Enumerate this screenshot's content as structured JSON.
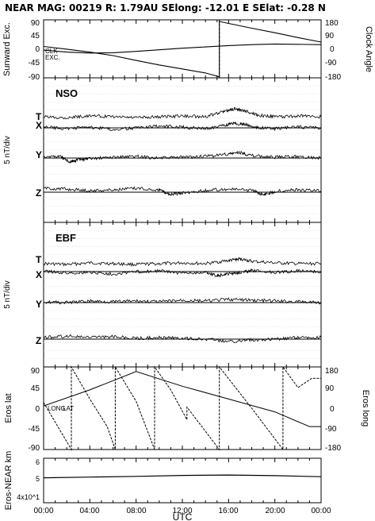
{
  "header": {
    "title": "NEAR MAG: 00219  R: 1.79AU  SElong:  -12.01 E  SElat:   -0.28 N"
  },
  "x_axis": {
    "label": "UTC",
    "ticks": [
      "00:00",
      "04:00",
      "08:00",
      "12:00",
      "16:00",
      "20:00",
      "00:00"
    ]
  },
  "chart_data": [
    {
      "id": "panel1",
      "type": "line",
      "ylabel_left": "Sunward Exc.",
      "ylabel_right": "Clock Angle",
      "ylim": [
        -90,
        90
      ],
      "ylim_right": [
        -180,
        180
      ],
      "left_ticks": [
        "90",
        "45",
        "0",
        "-45",
        "-90"
      ],
      "right_ticks": [
        "180",
        "90",
        "0",
        "-90",
        "-180"
      ],
      "series_labels": [
        "CLK",
        "EXC."
      ],
      "series": [
        {
          "name": "CLK",
          "axis": "right",
          "x": [
            0,
            2,
            4,
            6,
            8,
            10,
            12,
            14,
            15.2,
            15.2,
            16,
            18,
            20,
            22,
            24
          ],
          "y": [
            15,
            -2,
            -20,
            -42,
            -72,
            -100,
            -125,
            -150,
            -173,
            170,
            158,
            128,
            100,
            70,
            42
          ]
        },
        {
          "name": "EXC.",
          "axis": "left",
          "x": [
            0,
            2,
            4,
            6,
            8,
            10,
            12,
            14,
            16,
            18,
            20,
            22,
            24
          ],
          "y": [
            -4,
            -10,
            -13,
            -12,
            -8,
            -3,
            2,
            6,
            10,
            13,
            15,
            14,
            13
          ]
        }
      ]
    },
    {
      "id": "panel2",
      "type": "line",
      "label": "NSO",
      "ylabel": "5 nT/div",
      "series_labels": [
        "T",
        "X",
        "Y",
        "Z"
      ],
      "series": [
        {
          "name": "T",
          "baseline_div": 0,
          "x": [
            0,
            2,
            4,
            6,
            8,
            10,
            12,
            14,
            15.5,
            16.5,
            17.5,
            18.5,
            20,
            22,
            24
          ],
          "y": [
            0.3,
            0.2,
            0.4,
            0.3,
            0.2,
            0.3,
            0.4,
            0.3,
            0.9,
            1.3,
            1.0,
            0.5,
            0.3,
            0.4,
            0.3
          ]
        },
        {
          "name": "X",
          "baseline_div": 0,
          "x": [
            0,
            2,
            4,
            6,
            8,
            10,
            12,
            14,
            15.5,
            16.5,
            17.5,
            18.5,
            20,
            22,
            24
          ],
          "y": [
            0,
            -0.2,
            0,
            -0.3,
            -0.1,
            0.1,
            0,
            -0.2,
            0.2,
            0.5,
            0.3,
            -0.1,
            -0.2,
            0,
            -0.1
          ]
        },
        {
          "name": "Y",
          "baseline_div": 0,
          "x": [
            0,
            1.5,
            2.2,
            3,
            4,
            6,
            8,
            10,
            12,
            14,
            16,
            17,
            18,
            20,
            22,
            24
          ],
          "y": [
            0.1,
            0.1,
            -0.6,
            -0.3,
            -0.2,
            0,
            0.1,
            -0.1,
            0,
            0.1,
            0.4,
            0.6,
            0.2,
            0,
            0.1,
            -0.1
          ]
        },
        {
          "name": "Z",
          "baseline_div": 0,
          "x": [
            0,
            2,
            4,
            6,
            8,
            10,
            11,
            12,
            14,
            16,
            18,
            19,
            20,
            22,
            24
          ],
          "y": [
            0.4,
            0.3,
            0.1,
            0.2,
            0.4,
            0.2,
            -0.4,
            -0.2,
            0.1,
            0.3,
            0.1,
            -0.4,
            0,
            0.2,
            0.1
          ]
        }
      ]
    },
    {
      "id": "panel3",
      "type": "line",
      "label": "EBF",
      "ylabel": "5 nT/div",
      "series_labels": [
        "T",
        "X",
        "Y",
        "Z"
      ],
      "series": [
        {
          "name": "T",
          "baseline_div": 0,
          "x": [
            0,
            2,
            4,
            6,
            8,
            10,
            12,
            14,
            16,
            17,
            18,
            20,
            22,
            24
          ],
          "y": [
            0.2,
            0.1,
            0.3,
            0.2,
            0.1,
            0.2,
            0.3,
            0.2,
            0.6,
            0.8,
            0.5,
            0.3,
            0.2,
            0.2
          ]
        },
        {
          "name": "X",
          "baseline_div": 0,
          "x": [
            0,
            2,
            4,
            6,
            8,
            10,
            12,
            14,
            15,
            16,
            17,
            18,
            20,
            22,
            24
          ],
          "y": [
            0,
            -0.3,
            -0.2,
            -0.4,
            -0.1,
            0,
            -0.3,
            -0.2,
            -0.6,
            -0.4,
            -0.2,
            0,
            -0.2,
            0,
            -0.1
          ]
        },
        {
          "name": "Y",
          "baseline_div": 0,
          "x": [
            0,
            2,
            4,
            6,
            8,
            10,
            12,
            14,
            16,
            18,
            20,
            22,
            24
          ],
          "y": [
            0,
            -0.1,
            0.1,
            0,
            0.1,
            0,
            0.2,
            0.1,
            0.3,
            0.2,
            0.1,
            0,
            -0.1
          ]
        },
        {
          "name": "Z",
          "baseline_div": 0,
          "x": [
            0,
            2,
            4,
            6,
            8,
            10,
            12,
            14,
            16,
            18,
            20,
            22,
            24
          ],
          "y": [
            0.1,
            0.3,
            0.1,
            0.2,
            0,
            0.1,
            0,
            -0.1,
            -0.4,
            -0.2,
            -0.1,
            0.1,
            0.1
          ]
        }
      ]
    },
    {
      "id": "panel4",
      "type": "line",
      "ylabel_left": "Eros lat",
      "ylabel_right": "Eros long",
      "ylim": [
        -90,
        90
      ],
      "ylim_right": [
        -180,
        180
      ],
      "left_ticks": [
        "90",
        "45",
        "0",
        "-45",
        "-90"
      ],
      "right_ticks": [
        "180",
        "90",
        "0",
        "-90",
        "-180"
      ],
      "series_labels": [
        "LONG",
        "LAT"
      ],
      "series": [
        {
          "name": "LONG",
          "axis": "right",
          "x": [
            0,
            2.4,
            2.4,
            4,
            5.5,
            6.2,
            6.2,
            8,
            9.6,
            9.6,
            11,
            12.4,
            12.4,
            15.2,
            15.2,
            18,
            20.7,
            20.7,
            22,
            23.2,
            24
          ],
          "y": [
            25,
            -180,
            180,
            40,
            -80,
            -180,
            180,
            30,
            -180,
            180,
            80,
            -50,
            5,
            -180,
            180,
            0,
            -180,
            180,
            90,
            130,
            130
          ]
        },
        {
          "name": "LAT",
          "axis": "left",
          "x": [
            0,
            4,
            8,
            12,
            16,
            20,
            23,
            24
          ],
          "y": [
            5,
            40,
            80,
            48,
            20,
            -8,
            -40,
            -40
          ]
        }
      ]
    },
    {
      "id": "panel5",
      "type": "line",
      "ylabel": "Eros-NEAR km",
      "yscale": "log",
      "ylim": [
        3.5,
        6.5
      ],
      "y_unit": "x10^4",
      "left_ticks": [
        "6",
        "5",
        "4x10^1"
      ],
      "series": [
        {
          "name": "",
          "x": [
            0,
            4,
            8,
            12,
            16,
            20,
            24
          ],
          "y": [
            4.95,
            5.0,
            5.05,
            5.12,
            5.15,
            5.1,
            5.03
          ]
        }
      ]
    }
  ]
}
